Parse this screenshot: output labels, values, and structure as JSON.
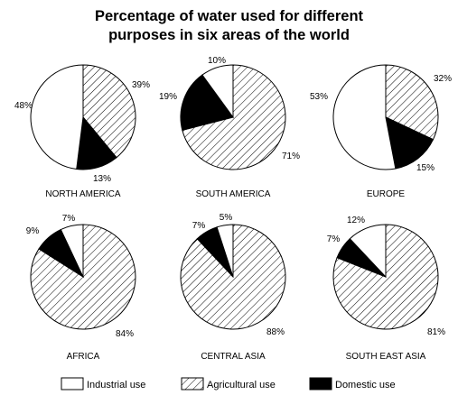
{
  "title_line1": "Percentage of water used for different",
  "title_line2": "purposes in six areas of the world",
  "colors": {
    "industrial": "#ffffff",
    "agricultural": "hatch",
    "domestic": "#000000",
    "stroke": "#000000"
  },
  "legend": [
    {
      "key": "industrial",
      "label": "Industrial use"
    },
    {
      "key": "agricultural",
      "label": "Agricultural use"
    },
    {
      "key": "domestic",
      "label": "Domestic use"
    }
  ],
  "chart_data": [
    {
      "type": "pie",
      "title": "NORTH AMERICA",
      "labels": [
        "Industrial use",
        "Agricultural use",
        "Domestic use"
      ],
      "values": [
        48,
        39,
        13
      ]
    },
    {
      "type": "pie",
      "title": "SOUTH AMERICA",
      "labels": [
        "Industrial use",
        "Agricultural use",
        "Domestic use"
      ],
      "values": [
        10,
        71,
        19
      ]
    },
    {
      "type": "pie",
      "title": "EUROPE",
      "labels": [
        "Industrial use",
        "Agricultural use",
        "Domestic use"
      ],
      "values": [
        53,
        32,
        15
      ]
    },
    {
      "type": "pie",
      "title": "AFRICA",
      "labels": [
        "Industrial use",
        "Agricultural use",
        "Domestic use"
      ],
      "values": [
        7,
        84,
        9
      ]
    },
    {
      "type": "pie",
      "title": "CENTRAL ASIA",
      "labels": [
        "Industrial use",
        "Agricultural use",
        "Domestic use"
      ],
      "values": [
        5,
        88,
        7
      ]
    },
    {
      "type": "pie",
      "title": "SOUTH EAST ASIA",
      "labels": [
        "Industrial use",
        "Agricultural use",
        "Domestic use"
      ],
      "values": [
        12,
        81,
        7
      ]
    }
  ]
}
